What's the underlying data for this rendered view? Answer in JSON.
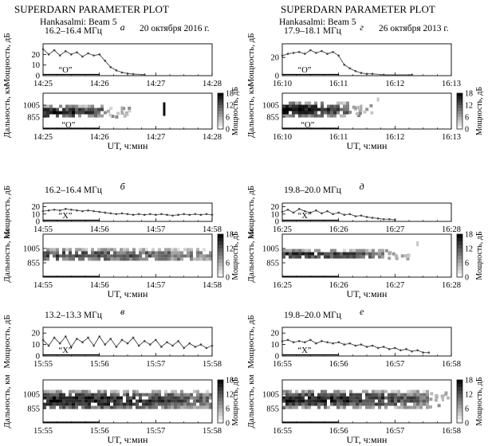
{
  "header_left": {
    "title": "SUPERDARN PARAMETER PLOT",
    "subtitle": "Hankasalmi: Beam 5",
    "date": "20 октября 2016 г."
  },
  "header_right": {
    "title": "SUPERDARN PARAMETER PLOT",
    "subtitle": "Hankasalmi: Beam 5",
    "date": "26 октября 2013 г."
  },
  "labels": {
    "power_ylabel": "Мощность, дБ",
    "range_ylabel": "Дальность, км",
    "colorbar_label": "Мощность, дБ",
    "xlabel": "UT, ч:мин",
    "colorbar_ticks": [
      "18",
      "12",
      "6",
      "0"
    ]
  },
  "colors": {
    "power_line": "#444444",
    "colormap_low": "#ffffff",
    "colormap_high": "#000000"
  },
  "chart_data": [
    {
      "type": "line",
      "panel": "а",
      "freq": "16.2–16.4 МГц",
      "x_ticks": [
        "14:25",
        "14:26",
        "14:27",
        "14:28"
      ],
      "x_range_min": [
        0,
        3
      ],
      "y_ticks": [
        "0",
        "10",
        "20"
      ],
      "ylim": [
        0,
        30
      ],
      "mode_label": "“O”",
      "series": [
        {
          "x": [
            0.0,
            0.1,
            0.2,
            0.3,
            0.4,
            0.5,
            0.6,
            0.7,
            0.8,
            0.9,
            1.0,
            1.1,
            1.2,
            1.3,
            1.4,
            1.5,
            1.6,
            1.8
          ],
          "y": [
            25,
            20,
            24,
            19,
            23,
            20,
            22,
            18,
            21,
            19,
            20,
            14,
            8,
            5,
            3,
            2,
            1.5,
            1
          ]
        }
      ]
    },
    {
      "type": "heatmap",
      "panel": "а-range",
      "x_ticks": [
        "14:25",
        "14:26",
        "14:27",
        "14:28"
      ],
      "x_range_min": [
        0,
        3
      ],
      "y_ticks": [
        "1005",
        "855"
      ],
      "y_range_km": [
        705,
        1155
      ],
      "zlim_db": [
        0,
        18
      ],
      "mode_label": "“O”",
      "blobs": [
        {
          "t0": 0.0,
          "t1": 1.1,
          "r0": 870,
          "r1": 1010,
          "peak_db": 16
        }
      ],
      "streaks": [
        {
          "t": 2.15,
          "r0": 870,
          "r1": 1040,
          "db": 17
        },
        {
          "t": 1.4,
          "r0": 920,
          "r1": 990,
          "db": 6
        }
      ]
    },
    {
      "type": "line",
      "panel": "б",
      "freq": "16.2–16.4 МГц",
      "x_ticks": [
        "14:55",
        "14:56",
        "14:57",
        "14:58"
      ],
      "x_range_min": [
        0,
        3
      ],
      "y_ticks": [
        "0",
        "10",
        "20"
      ],
      "ylim": [
        0,
        25
      ],
      "mode_label": "“X”",
      "series": [
        {
          "x": [
            0.0,
            0.1,
            0.2,
            0.3,
            0.4,
            0.5,
            0.6,
            0.7,
            0.8,
            0.9,
            1.0,
            1.1,
            1.2,
            1.3,
            1.4,
            1.5,
            1.6,
            1.7,
            1.8,
            1.9,
            2.0,
            2.1,
            2.2,
            2.3,
            2.4,
            2.5,
            2.6,
            2.7,
            2.8,
            2.9,
            3.0
          ],
          "y": [
            14,
            15,
            16,
            15,
            17,
            16,
            15,
            14,
            15,
            14,
            13,
            12,
            11,
            10,
            11,
            10,
            9,
            10,
            9,
            10,
            9,
            10,
            9,
            8,
            9,
            10,
            9,
            10,
            9,
            10,
            9
          ]
        }
      ]
    },
    {
      "type": "heatmap",
      "panel": "б-range",
      "x_ticks": [
        "14:55",
        "14:56",
        "14:57",
        "14:58"
      ],
      "x_range_min": [
        0,
        3
      ],
      "y_ticks": [
        "1005",
        "855"
      ],
      "y_range_km": [
        705,
        1155
      ],
      "zlim_db": [
        0,
        18
      ],
      "blobs": [
        {
          "t0": 0.0,
          "t1": 3.0,
          "r0": 890,
          "r1": 1010,
          "peak_db": 13
        }
      ],
      "streaks": []
    },
    {
      "type": "line",
      "panel": "в",
      "freq": "13.2–13.3 МГц",
      "x_ticks": [
        "15:55",
        "15:56",
        "15:57",
        "15:58"
      ],
      "x_range_min": [
        0,
        3
      ],
      "y_ticks": [
        "0",
        "10",
        "20"
      ],
      "ylim": [
        0,
        25
      ],
      "mode_label": "“X”",
      "series": [
        {
          "x": [
            0.0,
            0.1,
            0.2,
            0.3,
            0.4,
            0.5,
            0.6,
            0.7,
            0.8,
            0.9,
            1.0,
            1.1,
            1.2,
            1.3,
            1.4,
            1.5,
            1.6,
            1.7,
            1.8,
            1.9,
            2.0,
            2.1,
            2.2,
            2.3,
            2.4,
            2.5,
            2.6,
            2.7,
            2.8,
            2.9,
            3.0
          ],
          "y": [
            14,
            9,
            16,
            11,
            17,
            8,
            15,
            12,
            16,
            9,
            17,
            10,
            15,
            8,
            14,
            11,
            16,
            9,
            13,
            10,
            14,
            8,
            12,
            9,
            13,
            7,
            11,
            8,
            10,
            7,
            9
          ]
        }
      ]
    },
    {
      "type": "heatmap",
      "panel": "в-range",
      "x_ticks": [
        "15:55",
        "15:56",
        "15:57",
        "15:58"
      ],
      "x_range_min": [
        0,
        3
      ],
      "y_ticks": [
        "1005",
        "855"
      ],
      "y_range_km": [
        705,
        1155
      ],
      "zlim_db": [
        0,
        18
      ],
      "blobs": [
        {
          "t0": 0.0,
          "t1": 3.0,
          "r0": 860,
          "r1": 1050,
          "peak_db": 16
        }
      ],
      "streaks": []
    },
    {
      "type": "line",
      "panel": "г",
      "freq": "17.9–18.1 МГц",
      "x_ticks": [
        "16:10",
        "16:11",
        "16:12",
        "16:13"
      ],
      "x_range_min": [
        0,
        3
      ],
      "y_ticks": [
        "0",
        "20"
      ],
      "ylim": [
        0,
        35
      ],
      "mode_label": "“O”",
      "series": [
        {
          "x": [
            0.0,
            0.1,
            0.2,
            0.3,
            0.4,
            0.5,
            0.6,
            0.7,
            0.8,
            0.9,
            1.0,
            1.1,
            1.2,
            1.3,
            1.4,
            1.5,
            1.6,
            1.8,
            2.3
          ],
          "y": [
            22,
            24,
            25,
            26,
            24,
            28,
            25,
            27,
            24,
            26,
            22,
            12,
            8,
            5,
            3,
            2,
            2,
            1,
            1
          ]
        }
      ]
    },
    {
      "type": "heatmap",
      "panel": "г-range",
      "x_ticks": [
        "16:10",
        "16:11",
        "16:12",
        "16:13"
      ],
      "x_range_min": [
        0,
        3
      ],
      "y_ticks": [
        "1005",
        "855"
      ],
      "y_range_km": [
        705,
        1155
      ],
      "zlim_db": [
        0,
        18
      ],
      "mode_label": "“O”",
      "blobs": [
        {
          "t0": 0.0,
          "t1": 1.15,
          "r0": 880,
          "r1": 1050,
          "peak_db": 17
        }
      ],
      "streaks": [
        {
          "t": 1.4,
          "r0": 930,
          "r1": 1010,
          "db": 6
        },
        {
          "t": 1.7,
          "r0": 1050,
          "r1": 1100,
          "db": 4
        }
      ]
    },
    {
      "type": "line",
      "panel": "д",
      "freq": "19.8–20.0 МГц",
      "x_ticks": [
        "16:25",
        "16:26",
        "16:27",
        "16:28"
      ],
      "x_range_min": [
        0,
        3
      ],
      "y_ticks": [
        "0",
        "10",
        "20"
      ],
      "ylim": [
        0,
        25
      ],
      "mode_label": "“X”",
      "series": [
        {
          "x": [
            0.0,
            0.1,
            0.2,
            0.3,
            0.4,
            0.5,
            0.6,
            0.7,
            0.8,
            0.9,
            1.0,
            1.1,
            1.2,
            1.3,
            1.4,
            1.5,
            1.6,
            1.7,
            1.8,
            1.9,
            2.0
          ],
          "y": [
            13,
            16,
            12,
            17,
            14,
            12,
            15,
            11,
            14,
            10,
            12,
            9,
            10,
            7,
            8,
            6,
            5,
            4,
            3,
            3,
            2
          ]
        }
      ]
    },
    {
      "type": "heatmap",
      "panel": "д-range",
      "x_ticks": [
        "16:25",
        "16:26",
        "16:27",
        "16:28"
      ],
      "x_range_min": [
        0,
        3
      ],
      "y_ticks": [
        "1005",
        "855"
      ],
      "y_range_km": [
        705,
        1155
      ],
      "zlim_db": [
        0,
        18
      ],
      "blobs": [
        {
          "t0": 0.0,
          "t1": 1.8,
          "r0": 910,
          "r1": 1000,
          "peak_db": 15
        }
      ],
      "streaks": [
        {
          "t": 2.4,
          "r0": 1030,
          "r1": 1080,
          "db": 4
        }
      ]
    },
    {
      "type": "line",
      "panel": "е",
      "freq": "19.8–20.0 МГц",
      "x_ticks": [
        "16:55",
        "16:56",
        "16:57",
        "16:58"
      ],
      "x_range_min": [
        0,
        3
      ],
      "y_ticks": [
        "0",
        "10",
        "20"
      ],
      "ylim": [
        0,
        25
      ],
      "mode_label": "“X”",
      "series": [
        {
          "x": [
            0.0,
            0.1,
            0.2,
            0.3,
            0.4,
            0.5,
            0.6,
            0.7,
            0.8,
            0.9,
            1.0,
            1.1,
            1.2,
            1.3,
            1.4,
            1.5,
            1.6,
            1.7,
            1.8,
            1.9,
            2.0,
            2.1,
            2.2,
            2.3,
            2.4,
            2.5,
            2.6
          ],
          "y": [
            13,
            14,
            12,
            13,
            12,
            14,
            11,
            13,
            12,
            11,
            12,
            10,
            11,
            9,
            10,
            8,
            9,
            7,
            8,
            6,
            7,
            5,
            6,
            4,
            5,
            3,
            3
          ]
        }
      ]
    },
    {
      "type": "heatmap",
      "panel": "е-range",
      "x_ticks": [
        "16:55",
        "16:56",
        "16:57",
        "16:58"
      ],
      "x_range_min": [
        0,
        3
      ],
      "y_ticks": [
        "1005",
        "855"
      ],
      "y_range_km": [
        705,
        1155
      ],
      "zlim_db": [
        0,
        18
      ],
      "blobs": [
        {
          "t0": 0.0,
          "t1": 2.6,
          "r0": 880,
          "r1": 1050,
          "peak_db": 16
        }
      ],
      "streaks": [
        {
          "t": 2.85,
          "r0": 930,
          "r1": 1000,
          "db": 5
        }
      ]
    }
  ]
}
